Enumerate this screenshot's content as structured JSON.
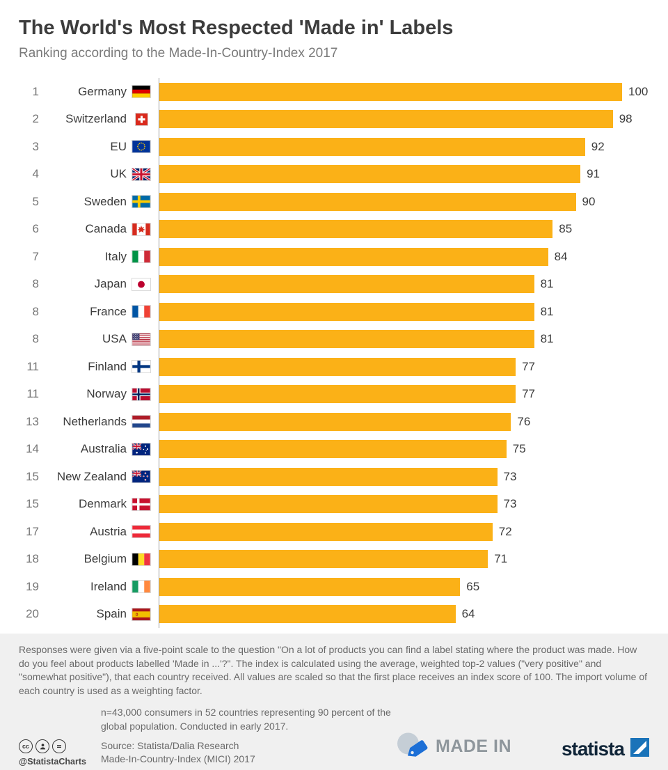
{
  "chart_data": {
    "type": "bar",
    "orientation": "horizontal",
    "title": "The World's Most Respected 'Made in' Labels",
    "subtitle": "Ranking according to the Made-In-Country-Index 2017",
    "xlim": [
      0,
      100
    ],
    "bar_color": "#fbb117",
    "rows": [
      {
        "rank": "1",
        "country": "Germany",
        "flag": "germany",
        "value": 100
      },
      {
        "rank": "2",
        "country": "Switzerland",
        "flag": "switzerland",
        "value": 98
      },
      {
        "rank": "3",
        "country": "EU",
        "flag": "eu",
        "value": 92
      },
      {
        "rank": "4",
        "country": "UK",
        "flag": "uk",
        "value": 91
      },
      {
        "rank": "5",
        "country": "Sweden",
        "flag": "sweden",
        "value": 90
      },
      {
        "rank": "6",
        "country": "Canada",
        "flag": "canada",
        "value": 85
      },
      {
        "rank": "7",
        "country": "Italy",
        "flag": "italy",
        "value": 84
      },
      {
        "rank": "8",
        "country": "Japan",
        "flag": "japan",
        "value": 81
      },
      {
        "rank": "8",
        "country": "France",
        "flag": "france",
        "value": 81
      },
      {
        "rank": "8",
        "country": "USA",
        "flag": "usa",
        "value": 81
      },
      {
        "rank": "11",
        "country": "Finland",
        "flag": "finland",
        "value": 77
      },
      {
        "rank": "11",
        "country": "Norway",
        "flag": "norway",
        "value": 77
      },
      {
        "rank": "13",
        "country": "Netherlands",
        "flag": "netherlands",
        "value": 76
      },
      {
        "rank": "14",
        "country": "Australia",
        "flag": "australia",
        "value": 75
      },
      {
        "rank": "15",
        "country": "New Zealand",
        "flag": "new-zealand",
        "value": 73
      },
      {
        "rank": "15",
        "country": "Denmark",
        "flag": "denmark",
        "value": 73
      },
      {
        "rank": "17",
        "country": "Austria",
        "flag": "austria",
        "value": 72
      },
      {
        "rank": "18",
        "country": "Belgium",
        "flag": "belgium",
        "value": 71
      },
      {
        "rank": "19",
        "country": "Ireland",
        "flag": "ireland",
        "value": 65
      },
      {
        "rank": "20",
        "country": "Spain",
        "flag": "spain",
        "value": 64
      }
    ]
  },
  "footnote": "Responses were given via a five-point scale to the question \"On a lot of products you can find a label stating where the product was made. How do you feel about products labelled 'Made in ...'?\". The index is calculated using the average, weighted top-2 values (\"very positive\" and \"somewhat positive\"), that each country received. All values are scaled so that the first place receives an index score of 100. The import volume of each country is used as a weighting factor.",
  "footer": {
    "sample_note": "n=43,000 consumers in 52 countries representing 90 percent of the global population. Conducted in early 2017.",
    "credit": "@StatistaCharts",
    "source_line1": "Source: Statista/Dalia Research",
    "source_line2": "Made-In-Country-Index (MICI) 2017",
    "madein_label": "MADE IN",
    "statista_label": "statista"
  }
}
